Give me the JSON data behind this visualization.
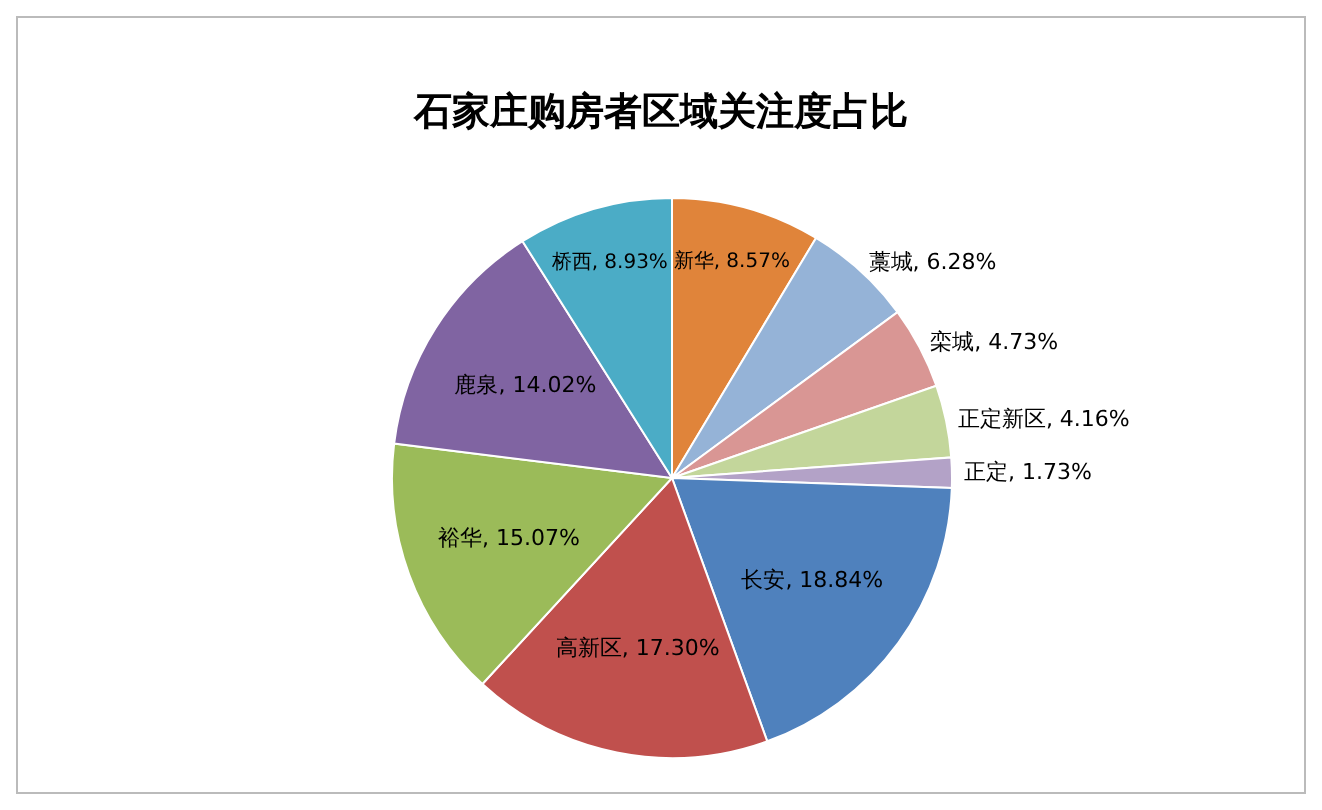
{
  "chart_data": {
    "type": "pie",
    "title": "石家庄购房者区域关注度占比",
    "categories": [
      "新华",
      "藁城",
      "栾城",
      "正定新区",
      "正定",
      "长安",
      "高新区",
      "裕华",
      "鹿泉",
      "桥西"
    ],
    "values": [
      8.57,
      6.28,
      4.73,
      4.16,
      1.73,
      18.84,
      17.3,
      15.07,
      14.02,
      8.93
    ],
    "value_labels": [
      "8.57%",
      "6.28%",
      "4.73%",
      "4.16%",
      "1.73%",
      "18.84%",
      "17.30%",
      "15.07%",
      "14.02%",
      "8.93%"
    ],
    "colors": [
      "#e0843a",
      "#95b3d7",
      "#d99694",
      "#c3d69b",
      "#b3a2c7",
      "#4f81bd",
      "#c0504d",
      "#9bbb59",
      "#8064a2",
      "#4bacc6"
    ],
    "legend": false
  }
}
